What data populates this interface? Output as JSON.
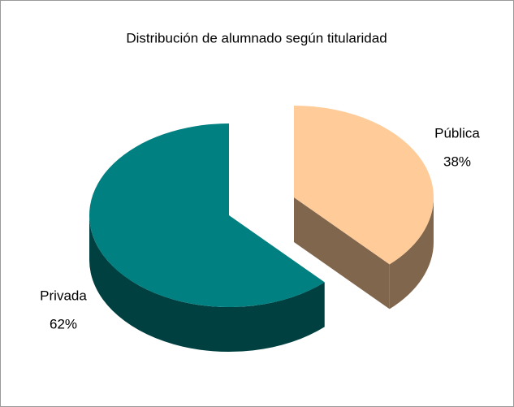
{
  "chart_data": {
    "type": "pie",
    "title": "Distribución de alumnado según titularidad",
    "categories": [
      "Pública",
      "Privada"
    ],
    "values": [
      38,
      62
    ],
    "value_labels": [
      "38%",
      "62%"
    ],
    "colors": [
      "#FFCC99",
      "#008080"
    ]
  }
}
